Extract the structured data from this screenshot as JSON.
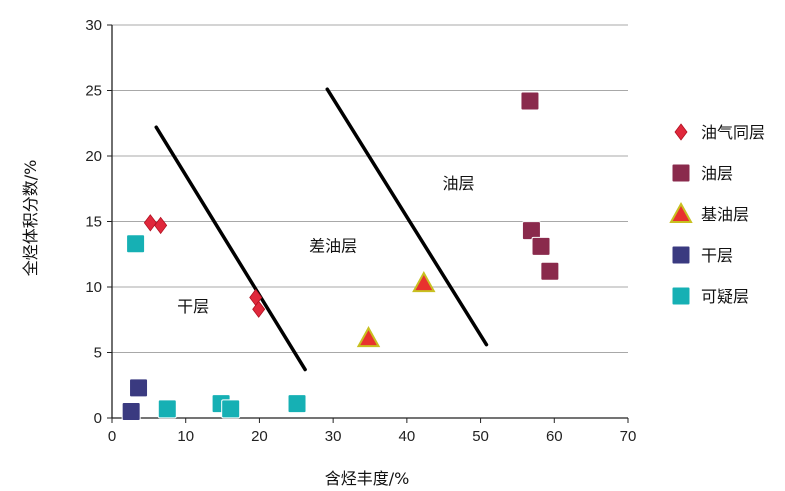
{
  "chart_data": {
    "type": "scatter",
    "xlabel": "含烃丰度/%",
    "ylabel": "全烃体积分数/%",
    "xlim": [
      0,
      70
    ],
    "ylim": [
      0,
      30
    ],
    "xticks": [
      0,
      10,
      20,
      30,
      40,
      50,
      60,
      70
    ],
    "yticks": [
      0,
      5,
      10,
      15,
      20,
      25,
      30
    ],
    "grid": "horizontal",
    "legend_position": "right",
    "series": [
      {
        "name": "油气同层",
        "marker": "diamond",
        "color": "#e0283c",
        "points": [
          [
            5.2,
            14.9
          ],
          [
            6.6,
            14.7
          ],
          [
            19.5,
            9.2
          ],
          [
            19.9,
            8.3
          ]
        ]
      },
      {
        "name": "油层",
        "marker": "square",
        "color": "#8a2a4c",
        "points": [
          [
            56.7,
            24.2
          ],
          [
            56.9,
            14.3
          ],
          [
            58.2,
            13.1
          ],
          [
            59.4,
            11.2
          ]
        ]
      },
      {
        "name": "基油层",
        "marker": "triangle",
        "color": "#e8322e",
        "stroke": "#c8c020",
        "points": [
          [
            34.8,
            6.1
          ],
          [
            42.3,
            10.3
          ]
        ]
      },
      {
        "name": "干层",
        "marker": "square",
        "color": "#3a3a80",
        "points": [
          [
            2.6,
            0.5
          ],
          [
            3.6,
            2.3
          ]
        ]
      },
      {
        "name": "可疑层",
        "marker": "square",
        "color": "#16b0b4",
        "points": [
          [
            3.2,
            13.3
          ],
          [
            7.5,
            0.7
          ],
          [
            14.8,
            1.1
          ],
          [
            16.1,
            0.7
          ],
          [
            25.1,
            1.1
          ]
        ]
      }
    ],
    "lines": [
      {
        "from": [
          6.0,
          22.2
        ],
        "to": [
          26.2,
          3.7
        ]
      },
      {
        "from": [
          29.2,
          25.1
        ],
        "to": [
          50.8,
          5.6
        ]
      }
    ],
    "annotations": [
      {
        "text": "干层",
        "x": 11,
        "y": 8.1
      },
      {
        "text": "差油层",
        "x": 30,
        "y": 12.7
      },
      {
        "text": "油层",
        "x": 47,
        "y": 17.5
      }
    ]
  }
}
